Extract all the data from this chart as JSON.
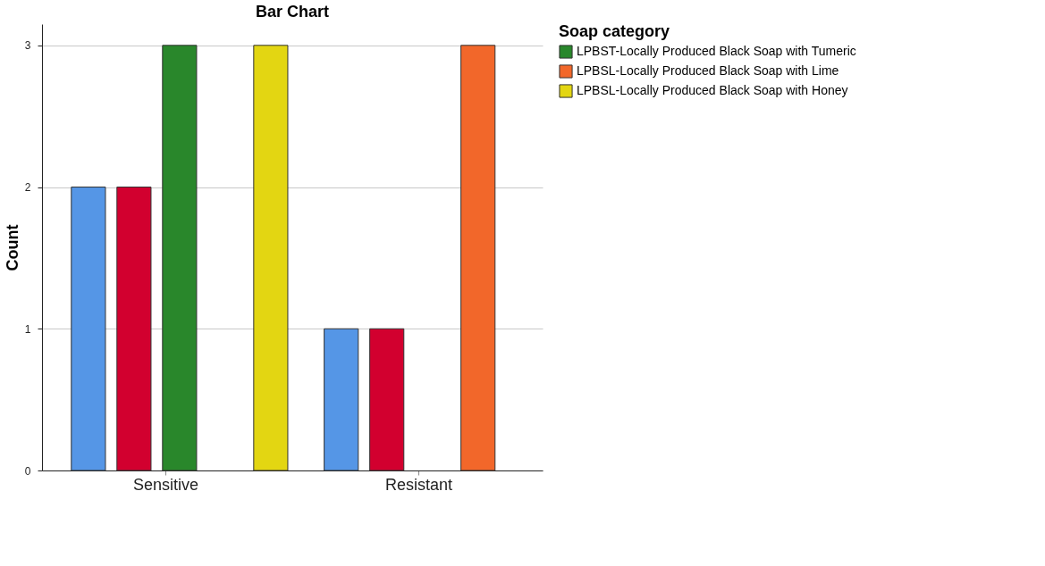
{
  "chart_data": {
    "type": "bar",
    "title": "Bar Chart",
    "ylabel": "Count",
    "legend_title": "Soap category",
    "categories": [
      "Sensitive",
      "Resistant"
    ],
    "series": [
      {
        "color": "#5596e6",
        "values": [
          2,
          1
        ]
      },
      {
        "color": "#d2002f",
        "values": [
          2,
          1
        ]
      },
      {
        "name": "LPBST-Locally Produced Black Soap with Tumeric",
        "color": "#29872b",
        "values": [
          3,
          null
        ]
      },
      {
        "name": "LPBSL-Locally Produced Black Soap with Lime",
        "color": "#f2672a",
        "values": [
          null,
          3
        ]
      },
      {
        "name": "LPBSL-Locally Produced Black Soap with Honey",
        "color": "#e3d612",
        "values": [
          3,
          null
        ]
      }
    ],
    "ylim": [
      0,
      3.15
    ],
    "yticks": [
      0,
      1,
      2,
      3
    ],
    "grid": "y",
    "legend": "top right"
  }
}
